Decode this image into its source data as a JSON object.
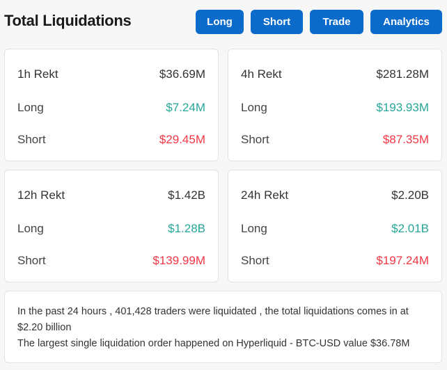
{
  "header": {
    "title": "Total Liquidations",
    "buttons": [
      "Long",
      "Short",
      "Trade",
      "Analytics"
    ]
  },
  "colors": {
    "accent": "#0b6bcb",
    "long": "#26a69a",
    "short": "#f23645"
  },
  "cards": [
    {
      "label": "1h Rekt",
      "total": "$36.69M",
      "long_label": "Long",
      "long": "$7.24M",
      "short_label": "Short",
      "short": "$29.45M"
    },
    {
      "label": "4h Rekt",
      "total": "$281.28M",
      "long_label": "Long",
      "long": "$193.93M",
      "short_label": "Short",
      "short": "$87.35M"
    },
    {
      "label": "12h Rekt",
      "total": "$1.42B",
      "long_label": "Long",
      "long": "$1.28B",
      "short_label": "Short",
      "short": "$139.99M"
    },
    {
      "label": "24h Rekt",
      "total": "$2.20B",
      "long_label": "Long",
      "long": "$2.01B",
      "short_label": "Short",
      "short": "$197.24M"
    }
  ],
  "summary": {
    "line1": "In the past 24 hours , 401,428 traders were liquidated , the total liquidations comes in at $2.20 billion",
    "line2": "The largest single liquidation order happened on Hyperliquid - BTC-USD value $36.78M"
  }
}
